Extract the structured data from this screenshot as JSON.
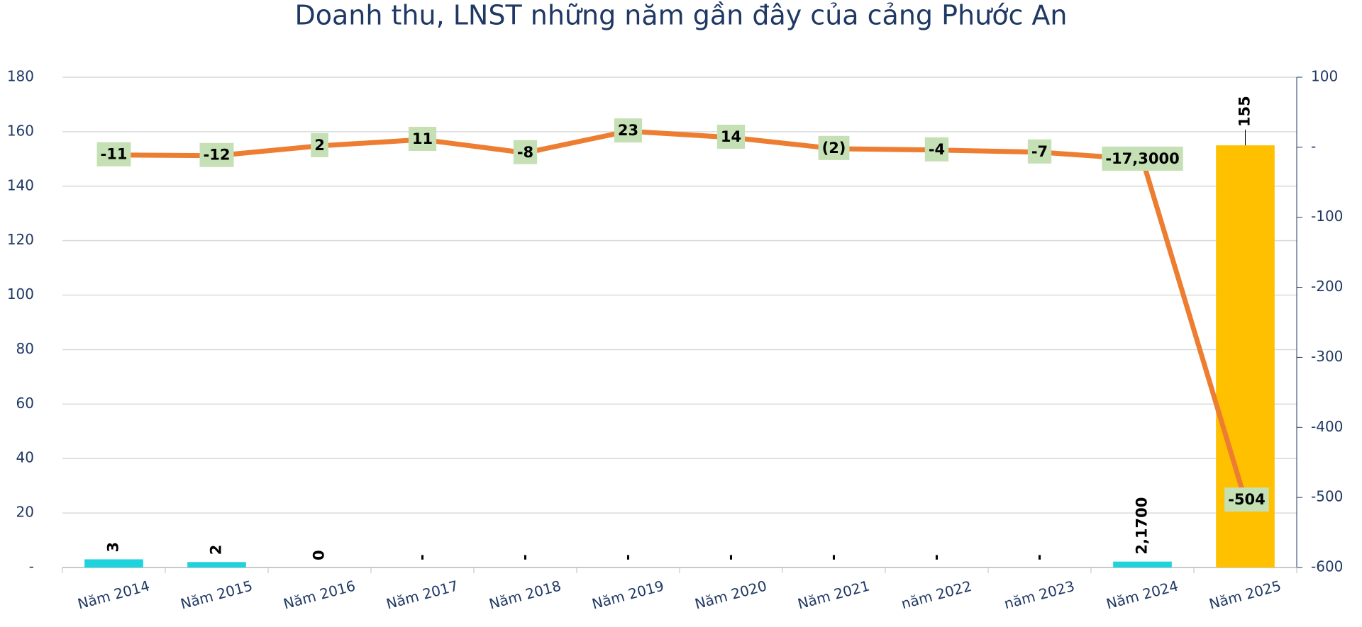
{
  "chart_data": {
    "type": "bar-line",
    "title": "Doanh thu, LNST những năm gần đây của cảng Phước An",
    "categories": [
      "Năm 2014",
      "Năm 2015",
      "Năm 2016",
      "Năm 2017",
      "Năm 2018",
      "Năm 2019",
      "Năm 2020",
      "Năm 2021",
      "năm 2022",
      "năm 2023",
      "Năm 2024",
      "Năm 2025"
    ],
    "series": [
      {
        "type": "bar",
        "colors": [
          "#1fd3dd",
          "#1fd3dd",
          "#1fd3dd",
          "#1fd3dd",
          "#1fd3dd",
          "#1fd3dd",
          "#1fd3dd",
          "#1fd3dd",
          "#1fd3dd",
          "#1fd3dd",
          "#1fd3dd",
          "#ffc000"
        ],
        "values": [
          3,
          2,
          0,
          0,
          0,
          0,
          0,
          0,
          0,
          0,
          2.17,
          155
        ],
        "value_labels": [
          "3",
          "2",
          "0",
          "-",
          "-",
          "-",
          "-",
          "-",
          "-",
          "-",
          "2,1700",
          "155"
        ]
      },
      {
        "type": "line",
        "axis": "y2",
        "color": "#ed7d31",
        "values": [
          -11,
          -12,
          2,
          11,
          -8,
          23,
          14,
          -2,
          -4,
          -7,
          -17.3,
          -504
        ],
        "value_labels": [
          "-11",
          "-12",
          "2",
          "11",
          "-8",
          "23",
          "14",
          "(2)",
          "-4",
          "-7",
          "-17,3000",
          "-504"
        ]
      }
    ],
    "ylim": [
      0,
      180
    ],
    "yticks": [
      {
        "value": 0,
        "label": "-"
      },
      20,
      40,
      60,
      80,
      100,
      120,
      140,
      160,
      180
    ],
    "y2lim": [
      -600,
      100
    ],
    "y2ticks": [
      -600,
      -500,
      -400,
      -300,
      -200,
      -100,
      {
        "value": 0,
        "label": "-"
      },
      100
    ],
    "grid": true
  }
}
